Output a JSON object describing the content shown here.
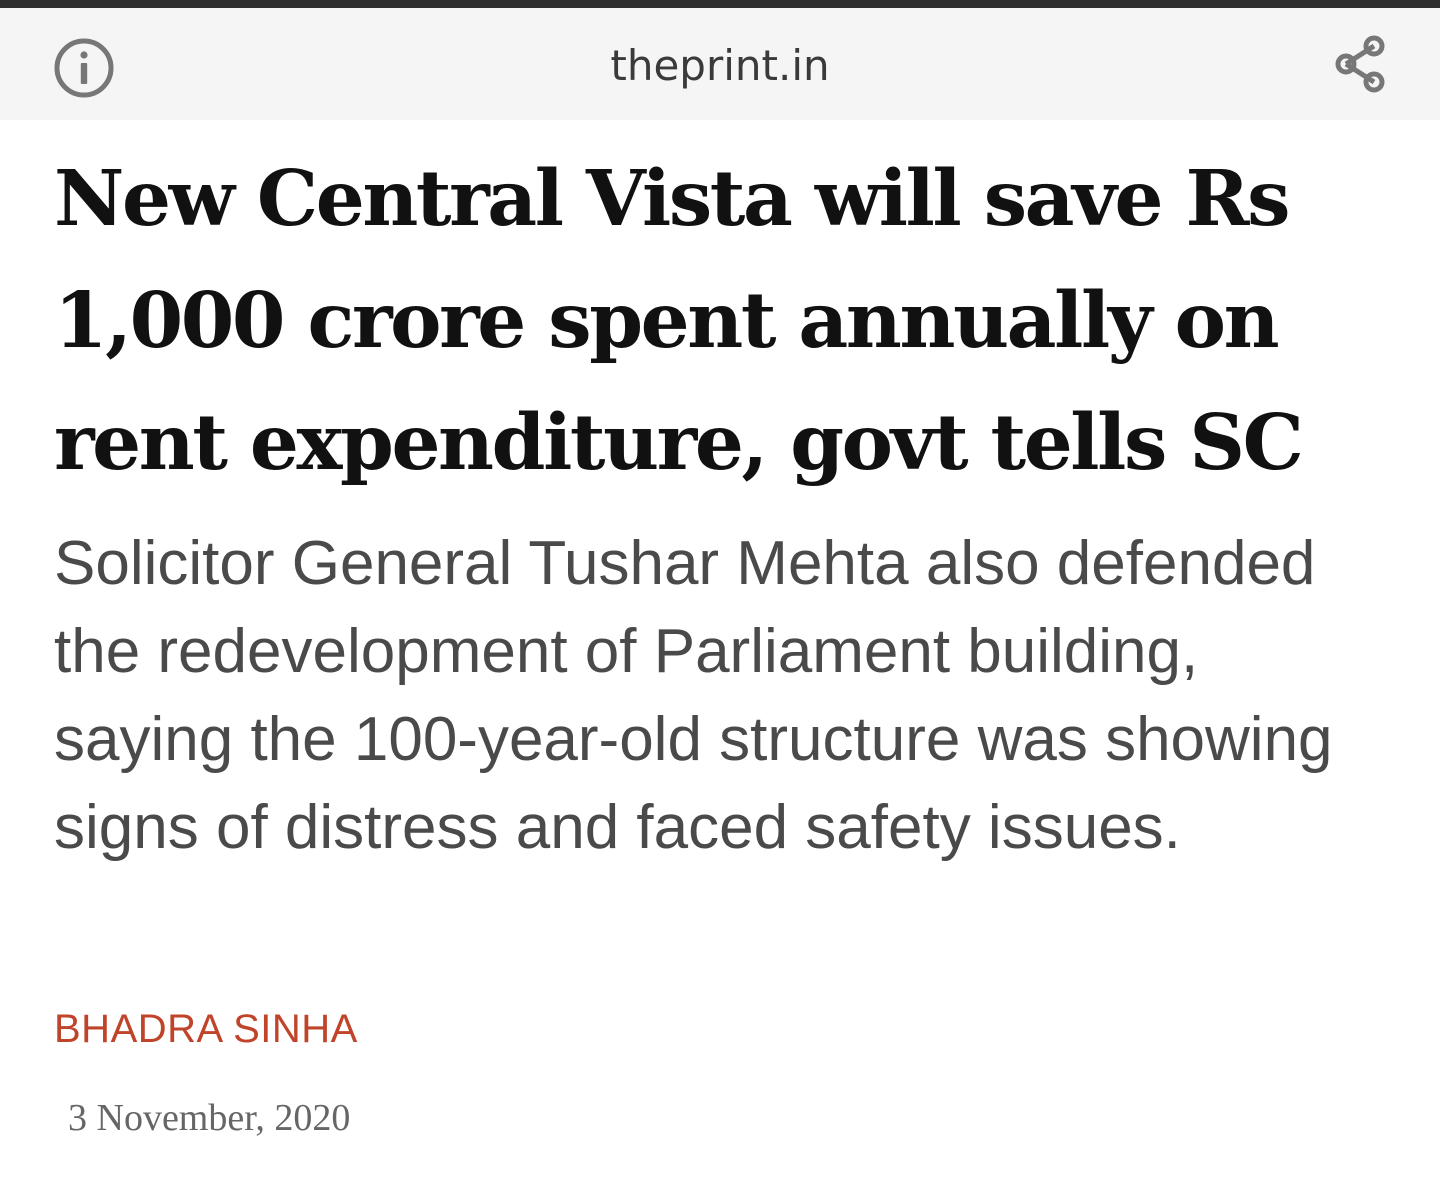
{
  "browser": {
    "url_domain": "theprint.in",
    "icons": {
      "info": "info-circle-icon",
      "share": "share-icon"
    }
  },
  "article": {
    "headline": "New Central Vista will save Rs 1,000 crore spent annually on rent expenditure, govt tells SC",
    "dek": "Solicitor General Tushar Mehta also defended the redevelopment of Parliament building, saying the 100-year-old structure was showing signs of distress and faced safety issues.",
    "author": "BHADRA SINHA",
    "date": "3 November, 2020"
  },
  "colors": {
    "author_accent": "#c0442a",
    "headline": "#111111",
    "dek": "#4a4a4a",
    "urlbar_bg": "#f5f5f5",
    "topline": "#2f2f2f"
  }
}
